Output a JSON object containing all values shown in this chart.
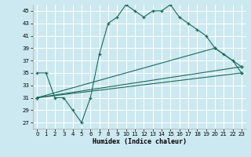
{
  "xlabel": "Humidex (Indice chaleur)",
  "bg_color": "#cce8f0",
  "line_color": "#1a6b5a",
  "grid_color": "#ffffff",
  "xlim": [
    -0.5,
    23.5
  ],
  "ylim": [
    26,
    46
  ],
  "yticks": [
    27,
    29,
    31,
    33,
    35,
    37,
    39,
    41,
    43,
    45
  ],
  "xticks": [
    0,
    1,
    2,
    3,
    4,
    5,
    6,
    7,
    8,
    9,
    10,
    11,
    12,
    13,
    14,
    15,
    16,
    17,
    18,
    19,
    20,
    21,
    22,
    23
  ],
  "series": [
    {
      "x": [
        0,
        1,
        2,
        3,
        4,
        5,
        6,
        7,
        8,
        9,
        10,
        11,
        12,
        13,
        14,
        15,
        16,
        17,
        18,
        19,
        20,
        21,
        22,
        23
      ],
      "y": [
        35,
        35,
        31,
        31,
        29,
        27,
        31,
        38,
        43,
        44,
        46,
        45,
        44,
        45,
        45,
        46,
        44,
        43,
        42,
        41,
        39,
        38,
        37,
        35
      ]
    },
    {
      "x": [
        0,
        23
      ],
      "y": [
        31,
        35
      ]
    },
    {
      "x": [
        0,
        23
      ],
      "y": [
        31,
        36
      ]
    },
    {
      "x": [
        0,
        20,
        23
      ],
      "y": [
        31,
        39,
        36
      ]
    }
  ]
}
